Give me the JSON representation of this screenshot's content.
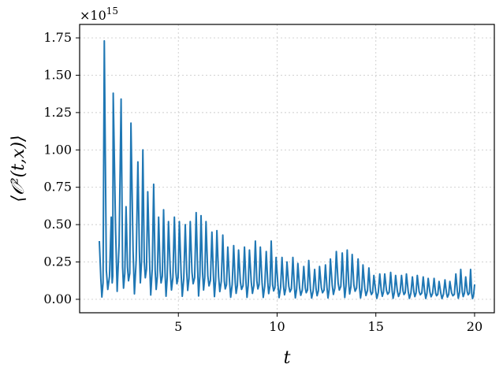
{
  "chart_data": {
    "type": "line",
    "title": "",
    "xlabel": "t",
    "ylabel": "⟨𝒪²(t,x)⟩",
    "scale_label": "×10^15",
    "xlim": [
      0.0,
      21.0
    ],
    "ylim": [
      -0.09,
      1.84
    ],
    "xticks": [
      5,
      10,
      15,
      20
    ],
    "xtick_labels": [
      "5",
      "10",
      "15",
      "20"
    ],
    "yticks": [
      0.0,
      0.25,
      0.5,
      0.75,
      1.0,
      1.25,
      1.5,
      1.75
    ],
    "ytick_labels": [
      "0.00",
      "0.25",
      "0.50",
      "0.75",
      "1.00",
      "1.25",
      "1.50",
      "1.75"
    ],
    "grid": true,
    "color": "#1f77b4",
    "peaks": [
      [
        1.0,
        0.39
      ],
      [
        1.25,
        1.73
      ],
      [
        1.6,
        0.55
      ],
      [
        1.7,
        1.38
      ],
      [
        2.1,
        1.34
      ],
      [
        2.35,
        0.62
      ],
      [
        2.6,
        1.18
      ],
      [
        2.95,
        0.92
      ],
      [
        3.2,
        1.0
      ],
      [
        3.45,
        0.72
      ],
      [
        3.75,
        0.77
      ],
      [
        4.0,
        0.55
      ],
      [
        4.25,
        0.6
      ],
      [
        4.5,
        0.52
      ],
      [
        4.8,
        0.55
      ],
      [
        5.05,
        0.52
      ],
      [
        5.35,
        0.5
      ],
      [
        5.6,
        0.52
      ],
      [
        5.9,
        0.58
      ],
      [
        6.15,
        0.56
      ],
      [
        6.4,
        0.52
      ],
      [
        6.7,
        0.45
      ],
      [
        6.95,
        0.46
      ],
      [
        7.25,
        0.43
      ],
      [
        7.5,
        0.35
      ],
      [
        7.8,
        0.36
      ],
      [
        8.05,
        0.33
      ],
      [
        8.35,
        0.35
      ],
      [
        8.6,
        0.33
      ],
      [
        8.9,
        0.39
      ],
      [
        9.15,
        0.35
      ],
      [
        9.45,
        0.32
      ],
      [
        9.7,
        0.39
      ],
      [
        9.95,
        0.28
      ],
      [
        10.25,
        0.28
      ],
      [
        10.5,
        0.25
      ],
      [
        10.8,
        0.28
      ],
      [
        11.05,
        0.24
      ],
      [
        11.35,
        0.22
      ],
      [
        11.6,
        0.26
      ],
      [
        11.9,
        0.2
      ],
      [
        12.15,
        0.22
      ],
      [
        12.45,
        0.23
      ],
      [
        12.7,
        0.27
      ],
      [
        13.0,
        0.32
      ],
      [
        13.3,
        0.31
      ],
      [
        13.55,
        0.33
      ],
      [
        13.8,
        0.3
      ],
      [
        14.1,
        0.27
      ],
      [
        14.35,
        0.23
      ],
      [
        14.65,
        0.21
      ],
      [
        14.9,
        0.16
      ],
      [
        15.2,
        0.17
      ],
      [
        15.45,
        0.17
      ],
      [
        15.75,
        0.18
      ],
      [
        16.0,
        0.16
      ],
      [
        16.3,
        0.16
      ],
      [
        16.55,
        0.17
      ],
      [
        16.85,
        0.15
      ],
      [
        17.1,
        0.16
      ],
      [
        17.4,
        0.15
      ],
      [
        17.65,
        0.14
      ],
      [
        17.95,
        0.14
      ],
      [
        18.2,
        0.12
      ],
      [
        18.5,
        0.13
      ],
      [
        18.75,
        0.12
      ],
      [
        19.05,
        0.17
      ],
      [
        19.3,
        0.2
      ],
      [
        19.55,
        0.15
      ],
      [
        19.8,
        0.2
      ],
      [
        20.0,
        0.1
      ]
    ]
  }
}
